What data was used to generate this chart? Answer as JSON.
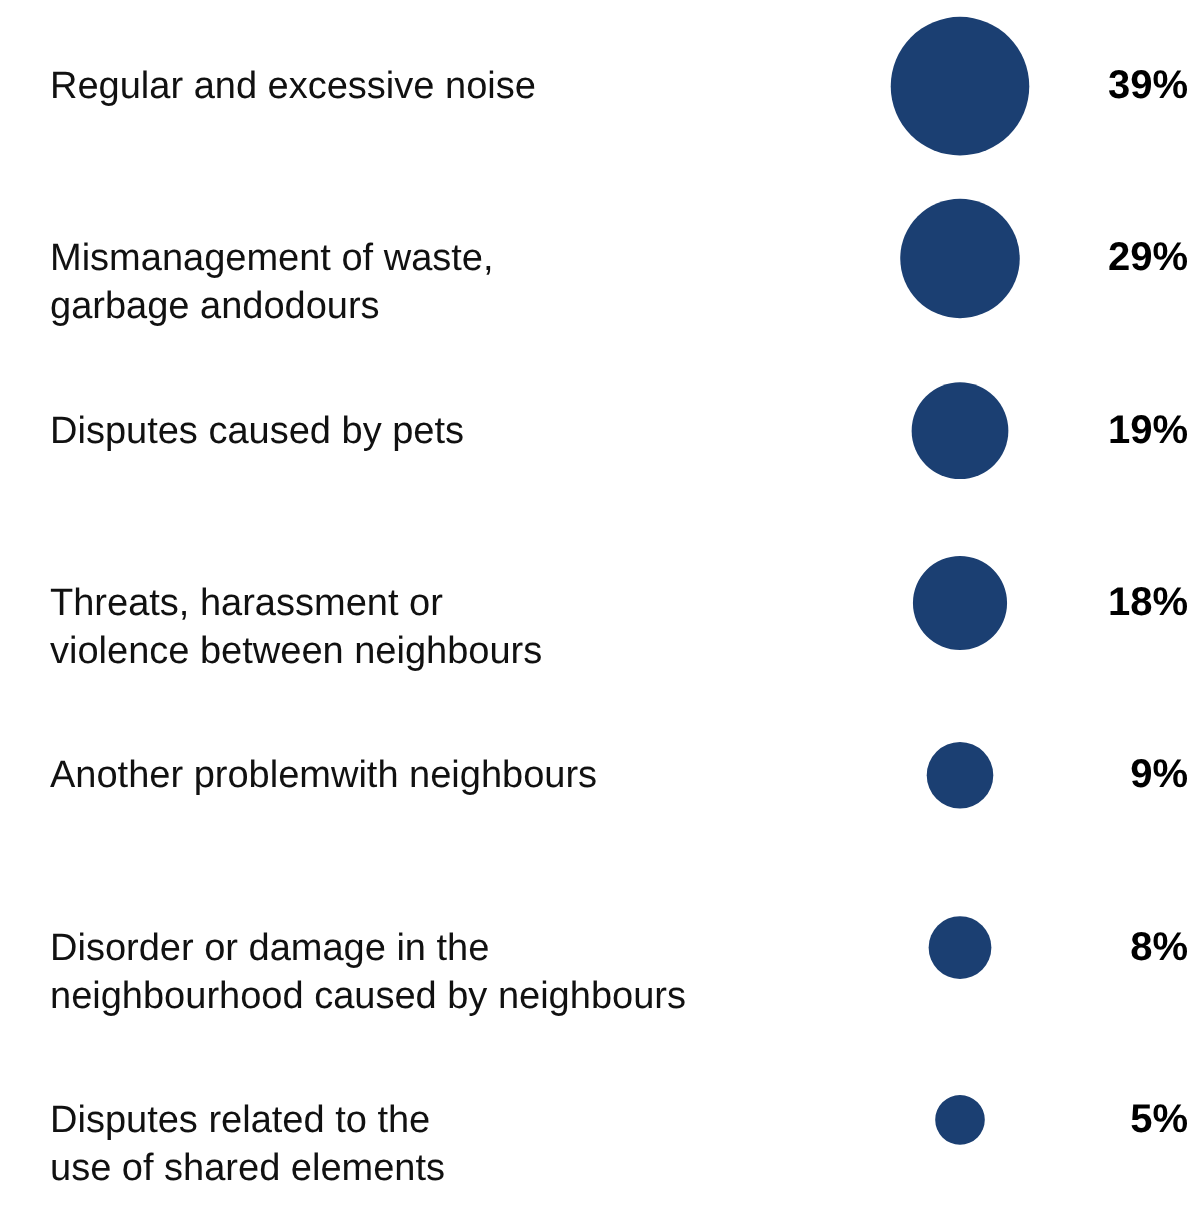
{
  "chart_data": {
    "type": "other",
    "categories": [
      "Regular and excessive noise",
      "Mismanagement of waste,\ngarbage andodours",
      "Disputes caused by pets",
      "Threats, harassment or\nviolence between neighbours",
      "Another problemwith neighbours",
      "Disorder or damage in the\nneighbourhood caused by neighbours",
      "Disputes related to the\nuse of shared elements"
    ],
    "values": [
      39,
      29,
      19,
      18,
      9,
      8,
      5
    ],
    "value_labels": [
      "39%",
      "29%",
      "19%",
      "18%",
      "9%",
      "8%",
      "5%"
    ],
    "color": "#1b3f72"
  }
}
